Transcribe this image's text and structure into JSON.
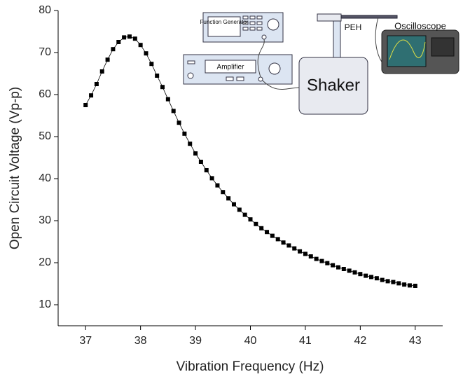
{
  "chart_data": {
    "type": "line",
    "x_label": "Vibration Frequency (Hz)",
    "y_label": "Open Circuit Voltage (Vp-p)",
    "x": [
      37.0,
      37.1,
      37.2,
      37.3,
      37.4,
      37.5,
      37.6,
      37.7,
      37.8,
      37.9,
      38.0,
      38.1,
      38.2,
      38.3,
      38.4,
      38.5,
      38.6,
      38.7,
      38.8,
      38.9,
      39.0,
      39.1,
      39.2,
      39.3,
      39.4,
      39.5,
      39.6,
      39.7,
      39.8,
      39.9,
      40.0,
      40.1,
      40.2,
      40.3,
      40.4,
      40.5,
      40.6,
      40.7,
      40.8,
      40.9,
      41.0,
      41.1,
      41.2,
      41.3,
      41.4,
      41.5,
      41.6,
      41.7,
      41.8,
      41.9,
      42.0,
      42.1,
      42.2,
      42.3,
      42.4,
      42.5,
      42.6,
      42.7,
      42.8,
      42.9,
      43.0
    ],
    "values": [
      57.5,
      59.8,
      62.5,
      65.5,
      68.3,
      70.8,
      72.5,
      73.6,
      73.8,
      73.3,
      71.8,
      69.8,
      67.3,
      64.5,
      61.8,
      58.9,
      56.1,
      53.3,
      50.7,
      48.3,
      46.0,
      44.0,
      42.0,
      40.1,
      38.4,
      36.8,
      35.3,
      33.9,
      32.6,
      31.4,
      30.3,
      29.2,
      28.2,
      27.3,
      26.4,
      25.6,
      24.8,
      24.1,
      23.4,
      22.7,
      22.1,
      21.5,
      20.9,
      20.4,
      19.9,
      19.4,
      18.9,
      18.5,
      18.1,
      17.7,
      17.3,
      16.9,
      16.6,
      16.3,
      15.9,
      15.6,
      15.4,
      15.1,
      14.8,
      14.6,
      14.5
    ],
    "color": "#000000",
    "xlim": [
      36.5,
      43.5
    ],
    "xticks": [
      37,
      38,
      39,
      40,
      41,
      42,
      43
    ],
    "ylim": [
      5,
      80
    ],
    "yticks": [
      10,
      20,
      30,
      40,
      50,
      60,
      70,
      80
    ]
  },
  "inset": {
    "function_generator": "Function Generator",
    "amplifier": "Amplifier",
    "shaker": "Shaker",
    "peh": "PEH",
    "oscilloscope": "Oscilloscope"
  }
}
